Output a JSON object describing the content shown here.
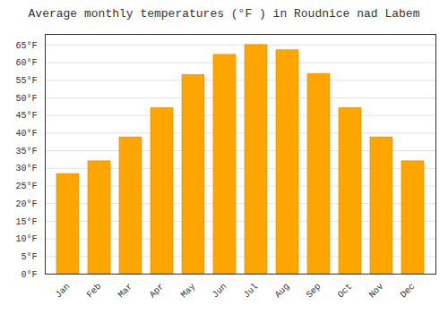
{
  "chart_data": {
    "type": "bar",
    "title": "Average monthly temperatures (°F ) in Roudnice nad Labem",
    "categories": [
      "Jan",
      "Feb",
      "Mar",
      "Apr",
      "May",
      "Jun",
      "Jul",
      "Aug",
      "Sep",
      "Oct",
      "Nov",
      "Dec"
    ],
    "values": [
      28.4,
      32.0,
      38.8,
      47.1,
      56.5,
      62.2,
      65.0,
      63.5,
      56.8,
      47.1,
      38.8,
      32.0
    ],
    "color": "#FFA500",
    "ylim": [
      0,
      68
    ],
    "yticks": [
      {
        "value": 0,
        "label": "0°F"
      },
      {
        "value": 5,
        "label": "5°F"
      },
      {
        "value": 10,
        "label": "10°F"
      },
      {
        "value": 15,
        "label": "15°F"
      },
      {
        "value": 20,
        "label": "20°F"
      },
      {
        "value": 25,
        "label": "25°F"
      },
      {
        "value": 30,
        "label": "30°F"
      },
      {
        "value": 35,
        "label": "35°F"
      },
      {
        "value": 40,
        "label": "40°F"
      },
      {
        "value": 45,
        "label": "45°F"
      },
      {
        "value": 50,
        "label": "50°F"
      },
      {
        "value": 55,
        "label": "55°F"
      },
      {
        "value": 60,
        "label": "60°F"
      },
      {
        "value": 65,
        "label": "65°F"
      }
    ],
    "grid": true
  }
}
